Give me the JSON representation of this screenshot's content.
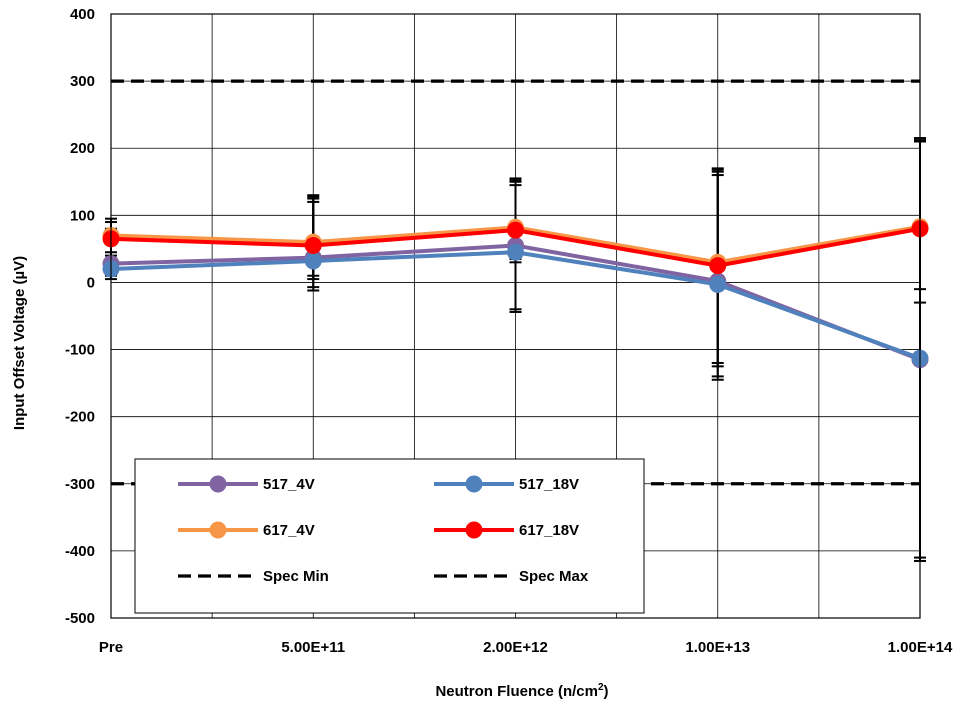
{
  "chart_data": {
    "type": "line",
    "title": "",
    "xlabel": "Neutron Fluence (n/cm",
    "xlabel_sup": "2",
    "xlabel_close": ")",
    "ylabel": "Input Offset Voltage (µV)",
    "categories": [
      "Pre",
      "5.00E+11",
      "2.00E+12",
      "1.00E+13",
      "1.00E+14"
    ],
    "ylim": [
      -500,
      400
    ],
    "yticks": [
      400,
      300,
      200,
      100,
      0,
      -100,
      -200,
      -300,
      -400,
      -500
    ],
    "grid": true,
    "legend_position": "bottom-left",
    "series": [
      {
        "name": "517_4V",
        "color": "#8064a2",
        "values": [
          28,
          37,
          55,
          2,
          -115
        ],
        "error_low": [
          10,
          -7,
          -40,
          -140,
          -410
        ],
        "error_high": [
          80,
          125,
          150,
          165,
          215
        ]
      },
      {
        "name": "517_18V",
        "color": "#4f81bd",
        "values": [
          20,
          32,
          45,
          -3,
          -113
        ],
        "error_low": [
          5,
          -12,
          -44,
          -145,
          -415
        ],
        "error_high": [
          75,
          120,
          145,
          160,
          210
        ]
      },
      {
        "name": "617_4V",
        "color": "#f79646",
        "values": [
          70,
          60,
          82,
          30,
          83
        ],
        "error_low": [
          45,
          10,
          35,
          -120,
          -10
        ],
        "error_high": [
          95,
          130,
          155,
          170,
          215
        ]
      },
      {
        "name": "617_18V",
        "color": "#ff0000",
        "values": [
          65,
          55,
          78,
          25,
          80
        ],
        "error_low": [
          40,
          5,
          30,
          -125,
          -30
        ],
        "error_high": [
          90,
          128,
          152,
          168,
          212
        ]
      }
    ],
    "reference_lines": [
      {
        "name": "Spec Min",
        "value": -300,
        "color": "#000000"
      },
      {
        "name": "Spec Max",
        "value": 300,
        "color": "#000000"
      }
    ]
  }
}
